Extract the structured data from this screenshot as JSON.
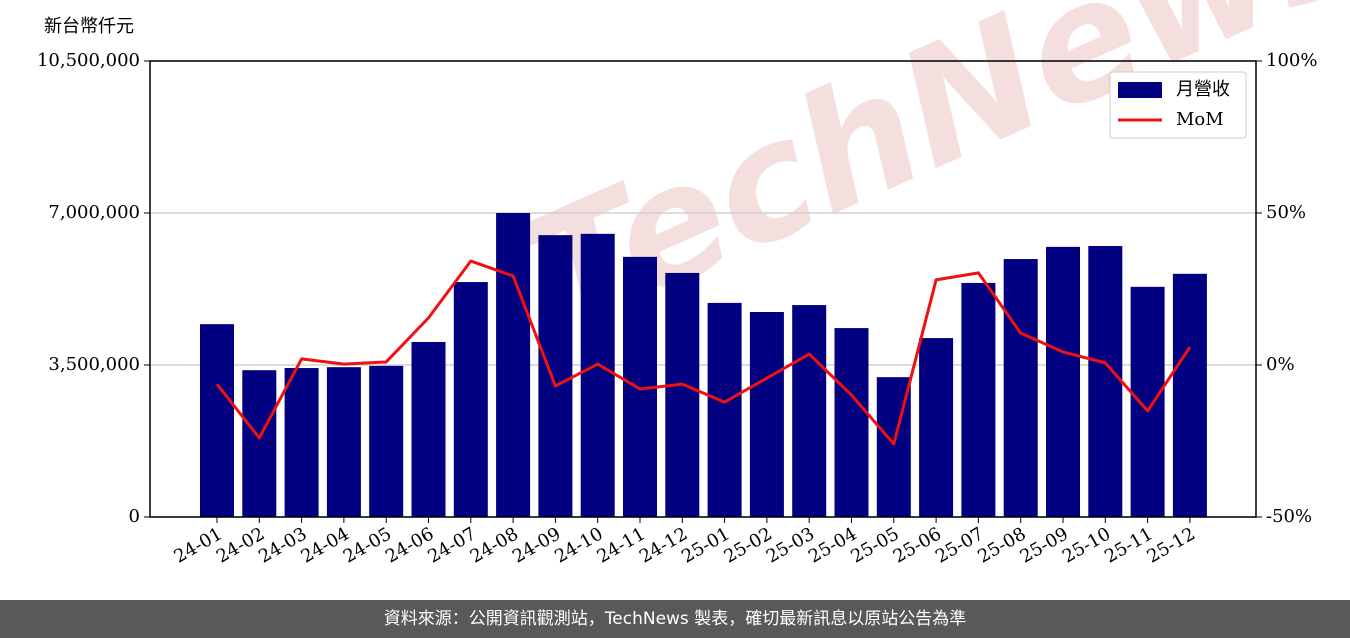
{
  "chart_data": {
    "type": "bar_line",
    "watermark": "TechNews",
    "y_label": "新台幣仟元",
    "categories": [
      "24-01",
      "24-02",
      "24-03",
      "24-04",
      "24-05",
      "24-06",
      "24-07",
      "24-08",
      "24-09",
      "24-10",
      "24-11",
      "24-12",
      "25-01",
      "25-02",
      "25-03",
      "25-04",
      "25-05",
      "25-06",
      "25-07",
      "25-08",
      "25-09",
      "25-10",
      "25-11",
      "25-12"
    ],
    "series": [
      {
        "name": "月營收",
        "type": "bar",
        "color": "#000080",
        "values": [
          4440000,
          3380000,
          3430000,
          3450000,
          3480000,
          4030000,
          5410000,
          7000000,
          6490000,
          6520000,
          5990000,
          5620000,
          4930000,
          4720000,
          4880000,
          4350000,
          3220000,
          4120000,
          5390000,
          5940000,
          6220000,
          6240000,
          5300000,
          5600000
        ]
      },
      {
        "name": "MoM",
        "type": "line",
        "axis": "y2",
        "color": "#ee1111",
        "values": [
          -6.3,
          -24,
          2,
          0.3,
          1,
          15.5,
          34.2,
          29.3,
          -6.9,
          0.3,
          -7.9,
          -6.3,
          -12.2,
          -4.3,
          3.6,
          -9.9,
          -26,
          28,
          30.3,
          10.5,
          4.3,
          0.7,
          -15.1,
          5.9
        ]
      }
    ],
    "ylim": [
      0,
      10500000
    ],
    "yticks": [
      {
        "value": 0,
        "label": "0"
      },
      {
        "value": 3500000,
        "label": "3,500,000"
      },
      {
        "value": 7000000,
        "label": "7,000,000"
      },
      {
        "value": 10500000,
        "label": "10,500,000"
      }
    ],
    "y2lim": [
      -50,
      100
    ],
    "y2ticks": [
      {
        "value": -50,
        "label": "-50%"
      },
      {
        "value": 0,
        "label": "0%"
      },
      {
        "value": 50,
        "label": "50%"
      },
      {
        "value": 100,
        "label": "100%"
      }
    ],
    "grid": true,
    "legend": "upper right"
  },
  "footer": "資料來源：公開資訊觀測站，TechNews 製表，確切最新訊息以原站公告為準"
}
